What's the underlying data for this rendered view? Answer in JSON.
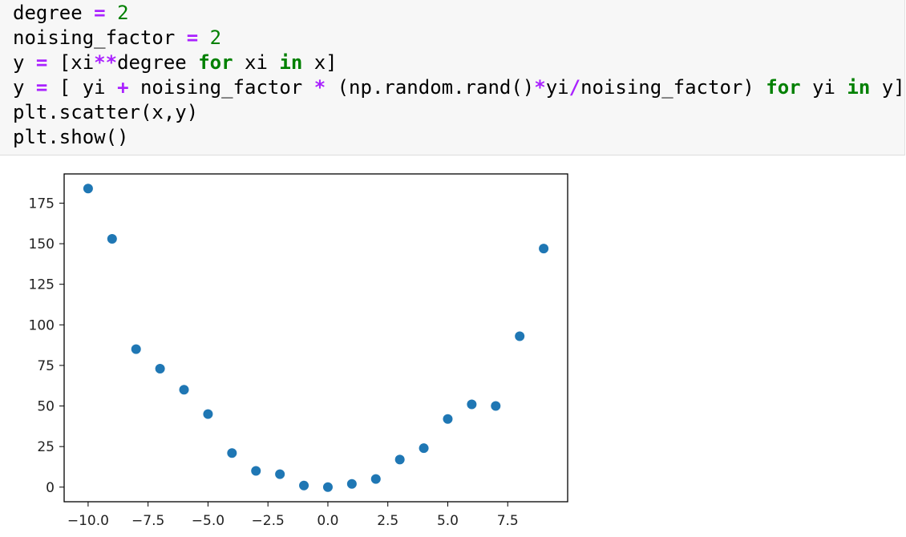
{
  "code_cell": {
    "lines": [
      [
        {
          "t": "degree "
        },
        {
          "t": "=",
          "c": "op"
        },
        {
          "t": " "
        },
        {
          "t": "2",
          "c": "num"
        }
      ],
      [
        {
          "t": "noising_factor "
        },
        {
          "t": "=",
          "c": "op"
        },
        {
          "t": " "
        },
        {
          "t": "2",
          "c": "num"
        }
      ],
      [
        {
          "t": "y "
        },
        {
          "t": "=",
          "c": "op"
        },
        {
          "t": " [xi"
        },
        {
          "t": "**",
          "c": "op"
        },
        {
          "t": "degree "
        },
        {
          "t": "for",
          "c": "kw"
        },
        {
          "t": " xi "
        },
        {
          "t": "in",
          "c": "kw"
        },
        {
          "t": " x]"
        }
      ],
      [
        {
          "t": "y "
        },
        {
          "t": "=",
          "c": "op"
        },
        {
          "t": " [ yi "
        },
        {
          "t": "+",
          "c": "op"
        },
        {
          "t": " noising_factor "
        },
        {
          "t": "*",
          "c": "op"
        },
        {
          "t": " (np.random.rand()"
        },
        {
          "t": "*",
          "c": "op"
        },
        {
          "t": "yi"
        },
        {
          "t": "/",
          "c": "op"
        },
        {
          "t": "noising_factor) "
        },
        {
          "t": "for",
          "c": "kw"
        },
        {
          "t": " yi "
        },
        {
          "t": "in",
          "c": "kw"
        },
        {
          "t": " y]"
        }
      ],
      [
        {
          "t": "plt.scatter(x,y)"
        }
      ],
      [
        {
          "t": "plt.show()"
        }
      ]
    ]
  },
  "chart_data": {
    "type": "scatter",
    "x": [
      -10,
      -9,
      -8,
      -7,
      -6,
      -5,
      -4,
      -3,
      -2,
      -1,
      0,
      1,
      2,
      3,
      4,
      5,
      6,
      7,
      8,
      9
    ],
    "y": [
      184,
      153,
      85,
      73,
      60,
      45,
      21,
      10,
      8,
      1,
      0,
      2,
      5,
      17,
      24,
      42,
      51,
      50,
      93,
      147
    ],
    "xlim": [
      -11,
      10
    ],
    "ylim": [
      -9,
      193
    ],
    "xticks": [
      -10.0,
      -7.5,
      -5.0,
      -2.5,
      0.0,
      2.5,
      5.0,
      7.5
    ],
    "xtick_labels": [
      "−10.0",
      "−7.5",
      "−5.0",
      "−2.5",
      "0.0",
      "2.5",
      "5.0",
      "7.5"
    ],
    "yticks": [
      0,
      25,
      50,
      75,
      100,
      125,
      150,
      175
    ],
    "ytick_labels": [
      "0",
      "25",
      "50",
      "75",
      "100",
      "125",
      "150",
      "175"
    ],
    "grid": false,
    "marker_color": "#1f77b4",
    "title": "",
    "xlabel": "",
    "ylabel": ""
  }
}
